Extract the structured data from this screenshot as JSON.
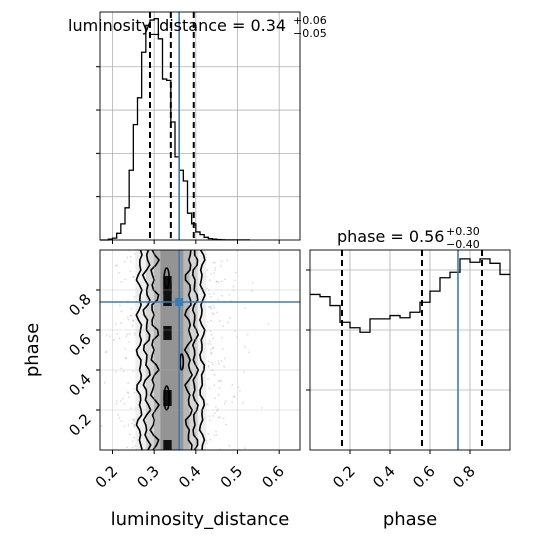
{
  "chart_data": {
    "type": "corner",
    "grid": true,
    "colors": {
      "truth": "#3b7cb5",
      "hist": "#000000",
      "grid": "#b0b0b0",
      "scatter": "#9a9a9a"
    },
    "parameters": [
      {
        "name": "luminosity_distance",
        "title": "luminosity_distance = 0.34",
        "title_plus": "+0.06",
        "title_minus": "−0.05",
        "xlabel": "luminosity_distance",
        "range": [
          0.17,
          0.65
        ],
        "ticks": [
          0.2,
          0.3,
          0.4,
          0.5,
          0.6
        ],
        "tick_labels": [
          "0.2",
          "0.3",
          "0.4",
          "0.5",
          "0.6"
        ],
        "quantiles": [
          0.29,
          0.34,
          0.395
        ],
        "truth": 0.36,
        "hist_edges": [
          0.17,
          0.18,
          0.19,
          0.2,
          0.21,
          0.22,
          0.23,
          0.24,
          0.25,
          0.26,
          0.27,
          0.28,
          0.29,
          0.3,
          0.31,
          0.32,
          0.33,
          0.34,
          0.35,
          0.36,
          0.37,
          0.38,
          0.39,
          0.4,
          0.41,
          0.42,
          0.43,
          0.44,
          0.45,
          0.46,
          0.47,
          0.48,
          0.49,
          0.5,
          0.51,
          0.52,
          0.53
        ],
        "hist_values": [
          0,
          0,
          0.3,
          0.7,
          2.5,
          6.0,
          12.0,
          26.0,
          43.0,
          53.0,
          70.0,
          80.0,
          82.0,
          82.5,
          75.0,
          60.0,
          59.5,
          44.0,
          31.0,
          26.0,
          22.0,
          10.0,
          6.0,
          3.0,
          2.0,
          1.0,
          0.5,
          0.3,
          0.2,
          0.1,
          0.05,
          0.05,
          0.05,
          0.05,
          0.05,
          0.05
        ],
        "hist_ymax": 85
      },
      {
        "name": "phase",
        "title": "phase = 0.56",
        "title_plus": "+0.30",
        "title_minus": "−0.40",
        "xlabel": "phase",
        "ylabel": "phase",
        "range": [
          0.0,
          1.0
        ],
        "ticks": [
          0.2,
          0.4,
          0.6,
          0.8
        ],
        "tick_labels": [
          "0.2",
          "0.4",
          "0.6",
          "0.8"
        ],
        "quantiles": [
          0.16,
          0.56,
          0.86
        ],
        "truth": 0.74,
        "hist_edges": [
          0.0,
          0.05,
          0.1,
          0.15,
          0.2,
          0.25,
          0.3,
          0.35,
          0.4,
          0.45,
          0.5,
          0.55,
          0.6,
          0.65,
          0.7,
          0.75,
          0.8,
          0.85,
          0.9,
          0.95,
          1.0
        ],
        "hist_values": [
          140,
          138,
          130,
          115,
          110,
          106,
          118,
          118,
          121,
          119,
          124,
          133,
          143,
          155,
          160,
          172,
          169,
          172,
          168,
          158
        ],
        "hist_ymax": 180
      }
    ]
  }
}
